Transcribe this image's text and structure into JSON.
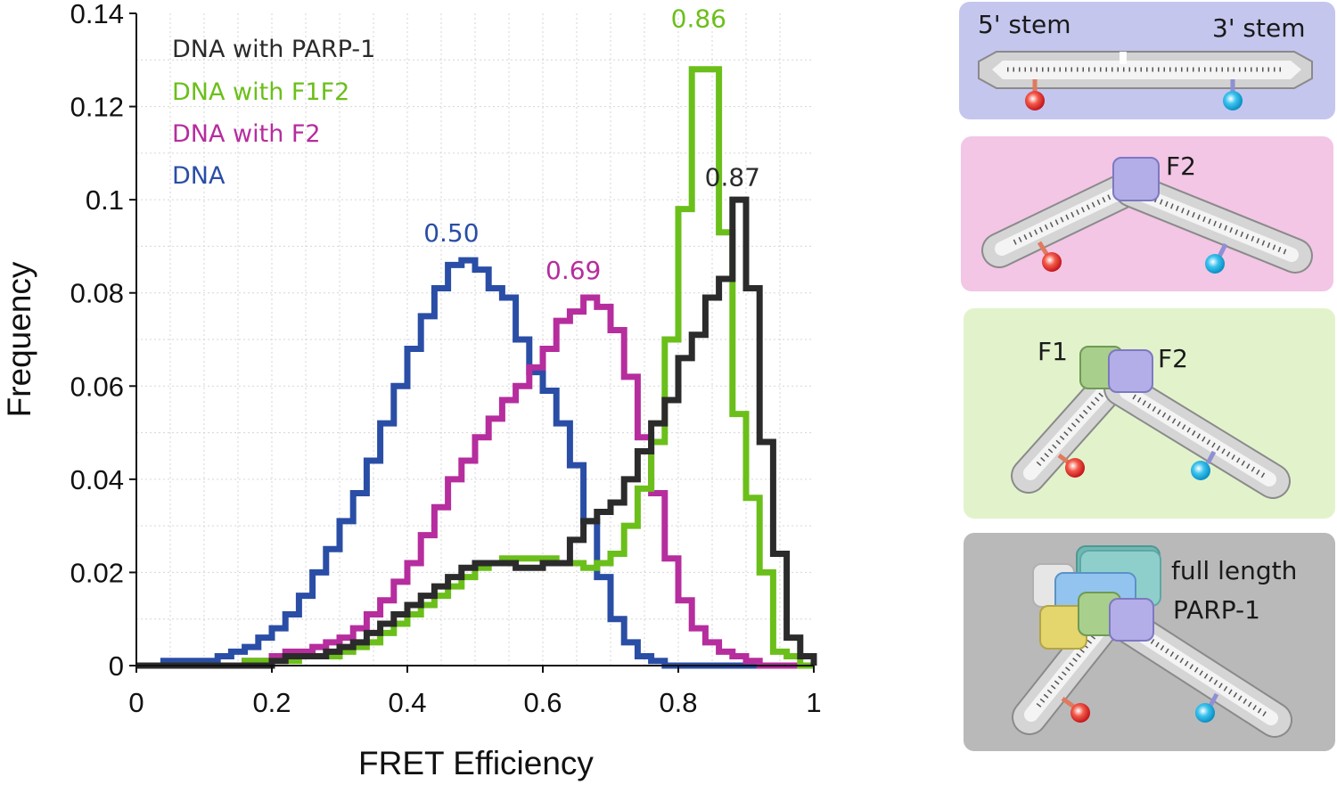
{
  "chart_data": {
    "type": "line",
    "style": "step-histogram",
    "xlabel": "FRET Efficiency",
    "ylabel": "Frequency",
    "xlim": [
      0,
      1
    ],
    "ylim": [
      0,
      0.14
    ],
    "xticks": [
      "0",
      "0.2",
      "0.4",
      "0.6",
      "0.8",
      "1"
    ],
    "xtick_values": [
      0,
      0.2,
      0.4,
      0.6,
      0.8,
      1
    ],
    "yticks": [
      "0",
      "0.02",
      "0.04",
      "0.06",
      "0.08",
      "0.1",
      "0.12",
      "0.14"
    ],
    "ytick_values": [
      0,
      0.02,
      0.04,
      0.06,
      0.08,
      0.1,
      0.12,
      0.14
    ],
    "grid": true,
    "legend_position": "top-left",
    "bin_width": 0.02,
    "bin_edges_start": 0,
    "series": [
      {
        "name": "DNA",
        "color": "#2a4ea6",
        "peak_label": "0.50",
        "values": [
          0.0,
          0.0,
          0.001,
          0.001,
          0.001,
          0.001,
          0.002,
          0.003,
          0.004,
          0.006,
          0.008,
          0.011,
          0.015,
          0.02,
          0.025,
          0.031,
          0.037,
          0.044,
          0.052,
          0.06,
          0.068,
          0.075,
          0.081,
          0.086,
          0.087,
          0.085,
          0.081,
          0.079,
          0.07,
          0.063,
          0.059,
          0.052,
          0.043,
          0.031,
          0.019,
          0.01,
          0.005,
          0.002,
          0.001,
          0.0,
          0.0,
          0.0,
          0.0,
          0.0,
          0.0,
          0.0,
          0.0,
          0.0,
          0.0,
          0.0
        ]
      },
      {
        "name": "DNA with F2",
        "color": "#b62d9e",
        "peak_label": "0.69",
        "values": [
          0.0,
          0.0,
          0.0,
          0.0,
          0.0,
          0.0,
          0.0,
          0.0,
          0.001,
          0.001,
          0.002,
          0.003,
          0.003,
          0.004,
          0.005,
          0.006,
          0.008,
          0.011,
          0.014,
          0.018,
          0.022,
          0.028,
          0.034,
          0.04,
          0.044,
          0.049,
          0.053,
          0.057,
          0.06,
          0.064,
          0.068,
          0.074,
          0.076,
          0.079,
          0.077,
          0.072,
          0.062,
          0.049,
          0.037,
          0.023,
          0.014,
          0.008,
          0.005,
          0.003,
          0.002,
          0.001,
          0.0,
          0.0,
          0.0,
          0.0
        ]
      },
      {
        "name": "DNA with F1F2",
        "color": "#6bbf1a",
        "peak_label": "0.86",
        "values": [
          0.0,
          0.0,
          0.0,
          0.0,
          0.0,
          0.0,
          0.0,
          0.0,
          0.001,
          0.001,
          0.001,
          0.001,
          0.002,
          0.002,
          0.002,
          0.003,
          0.004,
          0.005,
          0.007,
          0.009,
          0.011,
          0.013,
          0.015,
          0.017,
          0.019,
          0.021,
          0.022,
          0.023,
          0.023,
          0.023,
          0.023,
          0.022,
          0.022,
          0.021,
          0.022,
          0.024,
          0.03,
          0.038,
          0.048,
          0.07,
          0.098,
          0.128,
          0.128,
          0.093,
          0.054,
          0.036,
          0.02,
          0.003,
          0.002,
          0.0
        ]
      },
      {
        "name": "DNA with PARP-1",
        "color": "#2b2b2b",
        "peak_label": "0.87",
        "values": [
          0.0,
          0.0,
          0.0,
          0.0,
          0.0,
          0.0,
          0.0,
          0.0,
          0.0,
          0.0,
          0.001,
          0.002,
          0.002,
          0.002,
          0.003,
          0.004,
          0.005,
          0.007,
          0.009,
          0.011,
          0.013,
          0.015,
          0.017,
          0.019,
          0.021,
          0.022,
          0.022,
          0.022,
          0.021,
          0.021,
          0.022,
          0.022,
          0.027,
          0.031,
          0.033,
          0.035,
          0.04,
          0.046,
          0.052,
          0.057,
          0.066,
          0.071,
          0.079,
          0.083,
          0.1,
          0.081,
          0.048,
          0.024,
          0.006,
          0.002
        ]
      }
    ],
    "legend": [
      {
        "label": "DNA with PARP-1",
        "color": "#2b2b2b"
      },
      {
        "label": "DNA with F1F2",
        "color": "#6bbf1a"
      },
      {
        "label": "DNA with F2",
        "color": "#b62d9e"
      },
      {
        "label": "DNA",
        "color": "#2a4ea6"
      }
    ],
    "annotations": [
      {
        "text": "0.86",
        "color": "#6bbf1a",
        "x": 0.83,
        "y": 0.137
      },
      {
        "text": "0.87",
        "color": "#2b2b2b",
        "x": 0.88,
        "y": 0.103
      },
      {
        "text": "0.50",
        "color": "#2a4ea6",
        "x": 0.465,
        "y": 0.091
      },
      {
        "text": "0.69",
        "color": "#b62d9e",
        "x": 0.645,
        "y": 0.083
      }
    ]
  },
  "panels": {
    "dna": {
      "label_5": "5' stem",
      "label_3": "3' stem",
      "bg": "#c4c6ee"
    },
    "f2": {
      "label_f2": "F2",
      "bg": "#f2c6e4"
    },
    "f1f2": {
      "label_f1": "F1",
      "label_f2": "F2",
      "bg": "#e2f3cc"
    },
    "parp": {
      "label_line1": "full length",
      "label_line2": "PARP-1",
      "bg": "#b9b9b9"
    }
  }
}
